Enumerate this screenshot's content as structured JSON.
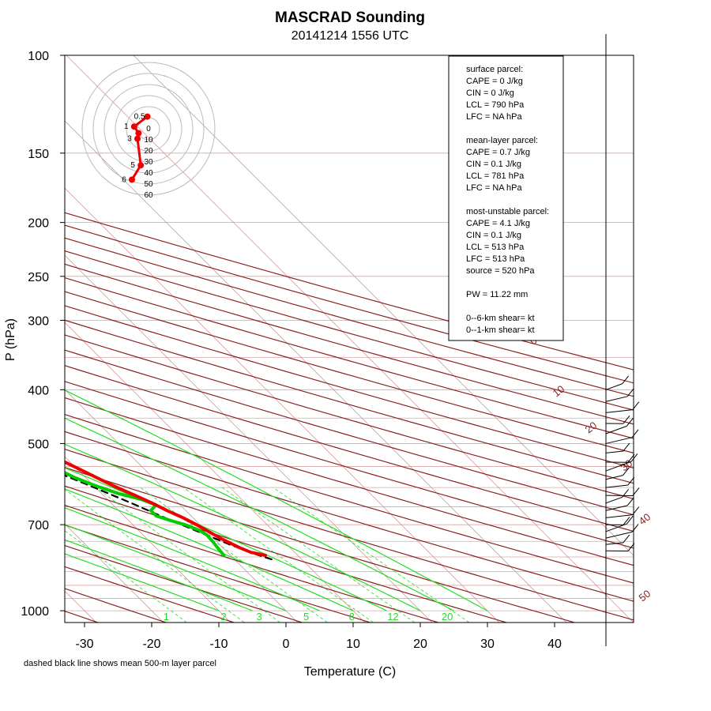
{
  "chart_data": {
    "type": "skew-t",
    "title": "MASCRAD Sounding",
    "subtitle": "20141214 1556 UTC",
    "xlabel": "Temperature (C)",
    "ylabel": "P (hPa)",
    "footnote": "dashed black line shows mean 500-m layer parcel",
    "x_ticks": [
      -30,
      -20,
      -10,
      0,
      10,
      20,
      30,
      40
    ],
    "p_ticks": [
      100,
      150,
      200,
      250,
      300,
      400,
      500,
      700,
      1000
    ],
    "xlim": [
      -33,
      48
    ],
    "plim": [
      1050,
      100
    ],
    "dry_adiabat_labels": [
      "0",
      "10",
      "20",
      "30",
      "40",
      "50"
    ],
    "mixing_ratio_labels": [
      "1",
      "2",
      "3",
      "5",
      "8",
      "12",
      "20"
    ],
    "colors": {
      "temperature": "#ee0000",
      "dewpoint": "#00cc00",
      "dry_adiabat": "#8b2222",
      "moist_adiabat": "#22dd22",
      "mixing_ratio": "#22dd22",
      "isotherm": "#c88c8c",
      "isobar": "#d9a6a6",
      "parcel": "#000000"
    },
    "series": [
      {
        "name": "temperature",
        "points": [
          [
            795,
            5.2
          ],
          [
            785,
            3.5
          ],
          [
            770,
            2.5
          ],
          [
            760,
            2.0
          ],
          [
            740,
            1.0
          ],
          [
            720,
            0.3
          ],
          [
            700,
            -0.5
          ],
          [
            680,
            -1.5
          ],
          [
            660,
            -2.8
          ],
          [
            640,
            -3.9
          ],
          [
            620,
            -5.3
          ],
          [
            600,
            -6.8
          ],
          [
            580,
            -8.1
          ],
          [
            560,
            -9.4
          ],
          [
            540,
            -10.8
          ],
          [
            520,
            -12.6
          ],
          [
            500,
            -14.2
          ],
          [
            480,
            -15.5
          ],
          [
            460,
            -17.0
          ],
          [
            445,
            -18.2
          ],
          [
            430,
            -20.0
          ],
          [
            420,
            -21.4
          ],
          [
            405,
            -22.8
          ],
          [
            395,
            -24.0
          ]
        ]
      },
      {
        "name": "dewpoint",
        "points": [
          [
            795,
            -1.0
          ],
          [
            770,
            -0.8
          ],
          [
            750,
            -0.6
          ],
          [
            730,
            -0.5
          ],
          [
            715,
            -1.0
          ],
          [
            700,
            -2.2
          ],
          [
            690,
            -3.5
          ],
          [
            675,
            -5.2
          ],
          [
            660,
            -5.2
          ],
          [
            645,
            -3.6
          ],
          [
            630,
            -5.0
          ],
          [
            615,
            -7.5
          ],
          [
            595,
            -9.8
          ],
          [
            575,
            -11.7
          ],
          [
            555,
            -13.0
          ],
          [
            540,
            -13.5
          ],
          [
            530,
            -13.7
          ],
          [
            520,
            -16.5
          ],
          [
            505,
            -22.0
          ],
          [
            495,
            -37.0
          ],
          [
            485,
            -42.0
          ],
          [
            475,
            -44.0
          ],
          [
            465,
            -43.5
          ],
          [
            455,
            -37.0
          ],
          [
            445,
            -31.0
          ],
          [
            435,
            -30.5
          ],
          [
            425,
            -27.5
          ],
          [
            415,
            -26.5
          ],
          [
            405,
            -28.0
          ],
          [
            395,
            -30.0
          ]
        ]
      },
      {
        "name": "mean 500-m layer parcel",
        "points": [
          [
            808,
            5.5
          ],
          [
            790,
            3.8
          ],
          [
            760,
            1.5
          ],
          [
            720,
            -1.3
          ],
          [
            680,
            -4.2
          ],
          [
            640,
            -7.0
          ],
          [
            600,
            -10.2
          ],
          [
            560,
            -13.8
          ],
          [
            520,
            -18.0
          ],
          [
            480,
            -22.8
          ],
          [
            440,
            -28.2
          ],
          [
            400,
            -33.5
          ],
          [
            395,
            -34.4
          ]
        ]
      }
    ],
    "hodograph": {
      "ring_labels": [
        "10",
        "20",
        "30",
        "40",
        "50",
        "60"
      ],
      "center_label": "0",
      "marker_labels": [
        "6",
        "5",
        "3",
        "1",
        "0.5"
      ],
      "points": [
        [
          -1,
          -11
        ],
        [
          -13,
          -2
        ],
        [
          -9,
          4
        ],
        [
          -10,
          9
        ],
        [
          -7,
          33
        ],
        [
          -15,
          46
        ]
      ]
    },
    "wind_barbs_pressures": [
      400,
      420,
      440,
      460,
      480,
      500,
      520,
      540,
      560,
      580,
      600,
      620,
      640,
      660,
      680,
      700,
      720,
      740,
      760,
      780
    ]
  },
  "info_box": {
    "lines": [
      "surface parcel:",
      "CAPE = 0 J/kg",
      "CIN = 0 J/kg",
      "LCL = 790 hPa",
      "LFC = NA hPa",
      "",
      "mean-layer parcel:",
      "CAPE = 0.7 J/kg",
      "CIN = 0.1 J/kg",
      "LCL = 781 hPa",
      "LFC = NA hPa",
      "",
      "most-unstable parcel:",
      "CAPE = 4.1 J/kg",
      "CIN = 0.1 J/kg",
      "LCL = 513 hPa",
      "LFC = 513 hPa",
      "source = 520 hPa",
      "",
      "PW =  11.22 mm",
      "",
      "0--6-km shear=  kt",
      "0--1-km shear=  kt"
    ]
  }
}
